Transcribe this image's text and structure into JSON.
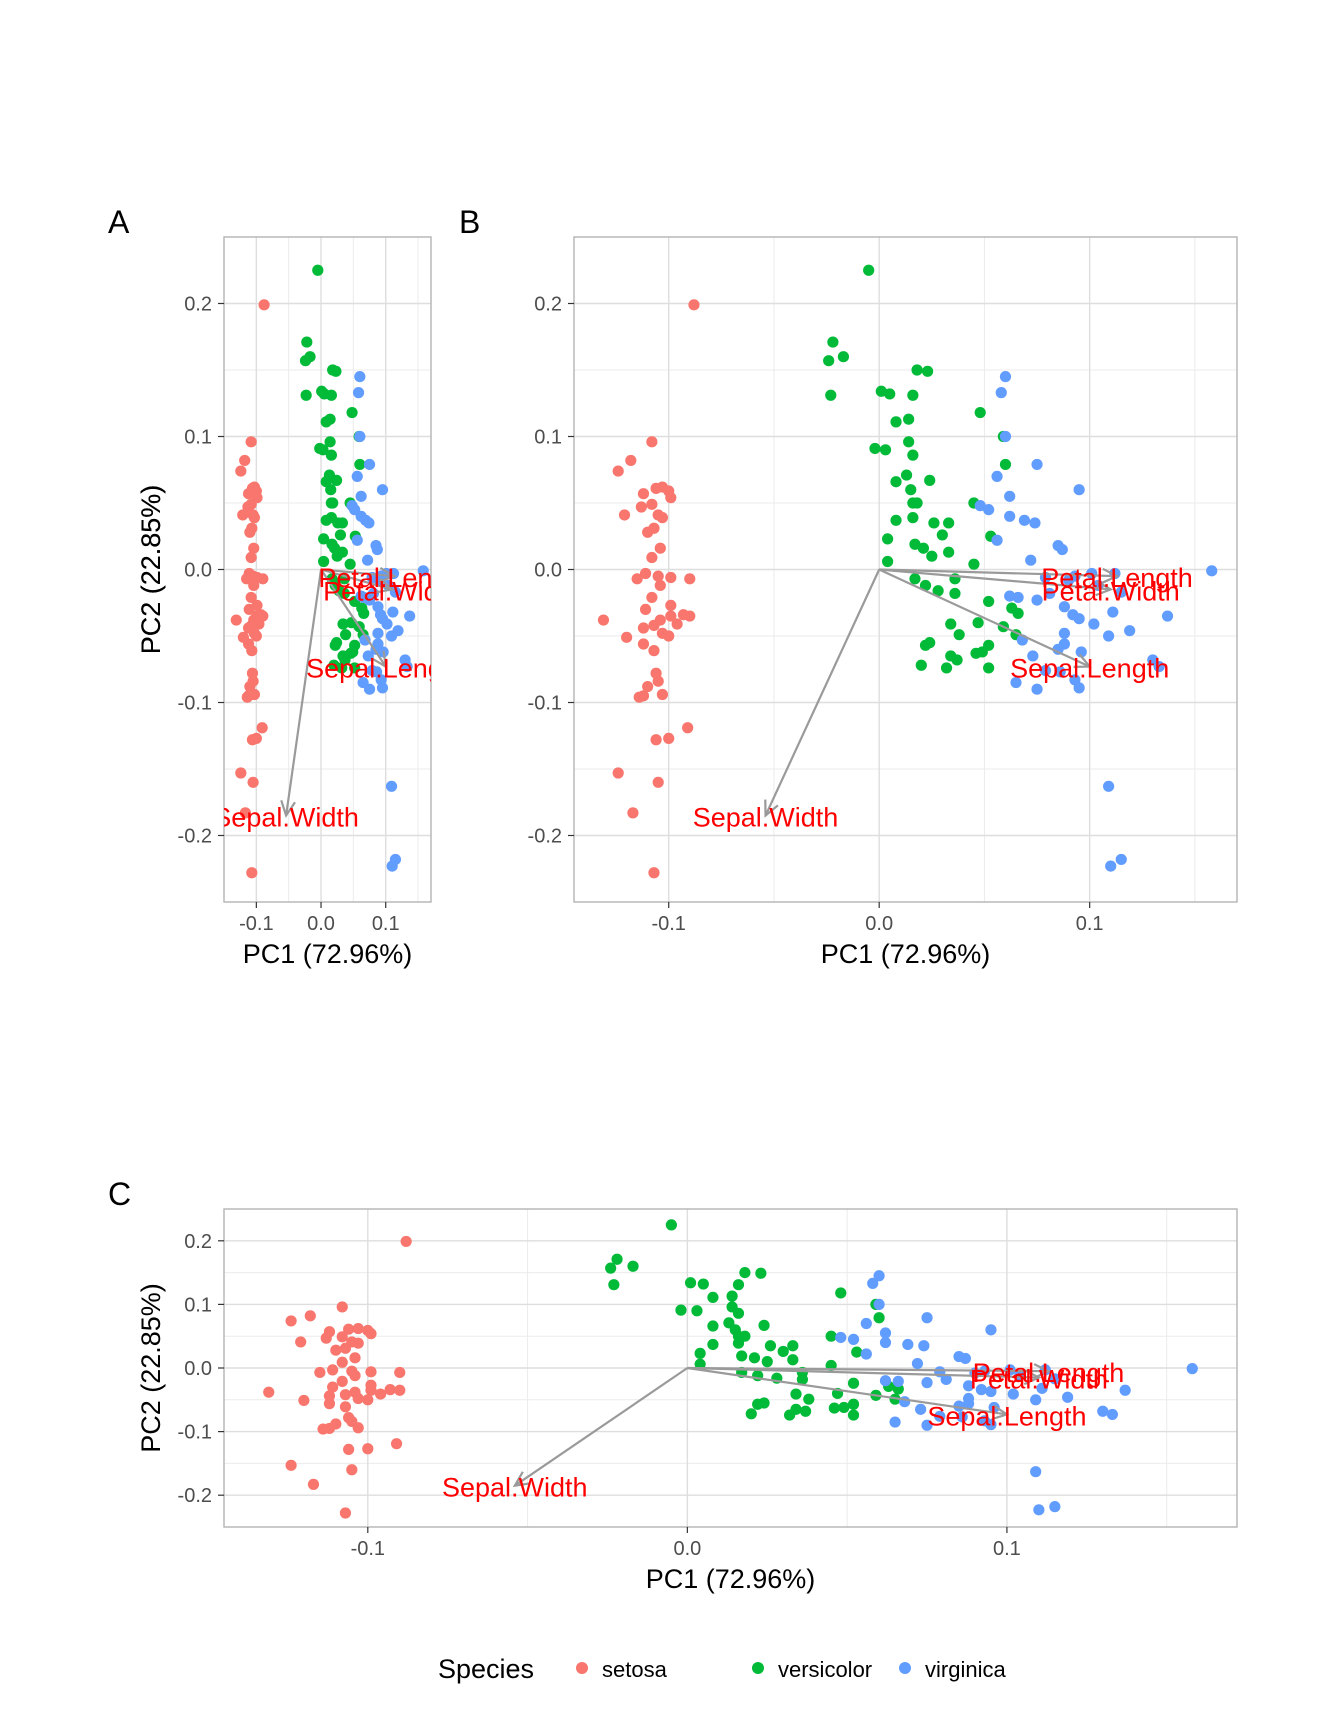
{
  "legend": {
    "title": "Species",
    "items": [
      {
        "label": "setosa",
        "color": "#F8766D"
      },
      {
        "label": "versicolor",
        "color": "#00BA38"
      },
      {
        "label": "virginica",
        "color": "#619CFF"
      }
    ]
  },
  "colors": {
    "setosa": "#F8766D",
    "versicolor": "#00BA38",
    "virginica": "#619CFF",
    "arrow": "#9A9A9A",
    "arrow_label": "#FF0000",
    "grid": "#EBEBEB",
    "frame": "#B3B3B3"
  },
  "chart_data": [
    {
      "type": "scatter",
      "panel_label": "A",
      "xlabel": "PC1 (72.96%)",
      "ylabel": "PC2 (22.85%)",
      "xlim": [
        -0.15,
        0.17
      ],
      "ylim": [
        -0.25,
        0.25
      ],
      "xticks": [
        "-0.1",
        "0.0",
        "0.1"
      ],
      "yticks": [
        "0.2",
        "0.1",
        "0.0",
        "-0.1",
        "-0.2"
      ],
      "xtick_values": [
        -0.1,
        0.0,
        0.1
      ],
      "ytick_values": [
        0.2,
        0.1,
        0.0,
        -0.1,
        -0.2
      ],
      "grid": true
    },
    {
      "type": "scatter",
      "panel_label": "B",
      "xlabel": "PC1 (72.96%)",
      "ylabel": "PC2 (22.85%)",
      "xlim": [
        -0.145,
        0.17
      ],
      "ylim": [
        -0.25,
        0.25
      ],
      "xticks": [
        "-0.1",
        "0.0",
        "0.1"
      ],
      "yticks": [
        "0.2",
        "0.1",
        "0.0",
        "-0.1",
        "-0.2"
      ],
      "xtick_values": [
        -0.1,
        0.0,
        0.1
      ],
      "ytick_values": [
        0.2,
        0.1,
        0.0,
        -0.1,
        -0.2
      ],
      "grid": true
    },
    {
      "type": "scatter",
      "panel_label": "C",
      "xlabel": "PC1 (72.96%)",
      "ylabel": "PC2 (22.85%)",
      "xlim": [
        -0.145,
        0.172
      ],
      "ylim": [
        -0.25,
        0.25
      ],
      "xticks": [
        "-0.1",
        "0.0",
        "0.1"
      ],
      "yticks": [
        "0.2",
        "0.1",
        "0.0",
        "-0.1",
        "-0.2"
      ],
      "xtick_values": [
        -0.1,
        0.0,
        0.1
      ],
      "ytick_values": [
        0.2,
        0.1,
        0.0,
        -0.1,
        -0.2
      ],
      "grid": true
    }
  ],
  "loadings": [
    {
      "name": "Sepal.Length",
      "x": 0.1,
      "y": -0.073
    },
    {
      "name": "Sepal.Width",
      "x": -0.054,
      "y": -0.185
    },
    {
      "name": "Petal.Length",
      "x": 0.113,
      "y": -0.005
    },
    {
      "name": "Petal.Width",
      "x": 0.11,
      "y": -0.015
    }
  ],
  "series": [
    {
      "name": "setosa",
      "points": [
        [
          -0.088,
          0.199
        ],
        [
          -0.108,
          0.096
        ],
        [
          -0.118,
          0.082
        ],
        [
          -0.124,
          0.074
        ],
        [
          -0.103,
          0.062
        ],
        [
          -0.106,
          0.061
        ],
        [
          -0.1,
          0.059
        ],
        [
          -0.112,
          0.057
        ],
        [
          -0.099,
          0.054
        ],
        [
          -0.108,
          0.049
        ],
        [
          -0.113,
          0.047
        ],
        [
          -0.121,
          0.041
        ],
        [
          -0.105,
          0.041
        ],
        [
          -0.103,
          0.039
        ],
        [
          -0.107,
          0.031
        ],
        [
          -0.11,
          0.028
        ],
        [
          -0.104,
          0.016
        ],
        [
          -0.108,
          0.009
        ],
        [
          -0.111,
          -0.003
        ],
        [
          -0.105,
          -0.005
        ],
        [
          -0.099,
          -0.006
        ],
        [
          -0.09,
          -0.007
        ],
        [
          -0.115,
          -0.007
        ],
        [
          -0.104,
          -0.012
        ],
        [
          -0.108,
          -0.021
        ],
        [
          -0.099,
          -0.027
        ],
        [
          -0.111,
          -0.03
        ],
        [
          -0.093,
          -0.034
        ],
        [
          -0.099,
          -0.035
        ],
        [
          -0.131,
          -0.038
        ],
        [
          -0.09,
          -0.035
        ],
        [
          -0.104,
          -0.038
        ],
        [
          -0.096,
          -0.041
        ],
        [
          -0.107,
          -0.042
        ],
        [
          -0.112,
          -0.044
        ],
        [
          -0.103,
          -0.048
        ],
        [
          -0.1,
          -0.05
        ],
        [
          -0.12,
          -0.051
        ],
        [
          -0.112,
          -0.056
        ],
        [
          -0.107,
          -0.061
        ],
        [
          -0.106,
          -0.078
        ],
        [
          -0.105,
          -0.084
        ],
        [
          -0.11,
          -0.088
        ],
        [
          -0.103,
          -0.094
        ],
        [
          -0.112,
          -0.095
        ],
        [
          -0.114,
          -0.096
        ],
        [
          -0.091,
          -0.119
        ],
        [
          -0.1,
          -0.127
        ],
        [
          -0.106,
          -0.128
        ],
        [
          -0.124,
          -0.153
        ],
        [
          -0.105,
          -0.16
        ],
        [
          -0.117,
          -0.183
        ],
        [
          -0.107,
          -0.228
        ]
      ]
    },
    {
      "name": "versicolor",
      "points": [
        [
          -0.005,
          0.225
        ],
        [
          -0.022,
          0.171
        ],
        [
          -0.017,
          0.16
        ],
        [
          -0.024,
          0.157
        ],
        [
          0.018,
          0.15
        ],
        [
          0.023,
          0.149
        ],
        [
          -0.023,
          0.131
        ],
        [
          0.001,
          0.134
        ],
        [
          0.005,
          0.132
        ],
        [
          0.016,
          0.131
        ],
        [
          0.048,
          0.118
        ],
        [
          0.014,
          0.113
        ],
        [
          0.008,
          0.111
        ],
        [
          0.059,
          0.1
        ],
        [
          0.014,
          0.096
        ],
        [
          -0.002,
          0.091
        ],
        [
          0.003,
          0.09
        ],
        [
          0.016,
          0.086
        ],
        [
          0.06,
          0.079
        ],
        [
          0.013,
          0.071
        ],
        [
          0.024,
          0.067
        ],
        [
          0.008,
          0.066
        ],
        [
          0.015,
          0.06
        ],
        [
          0.016,
          0.05
        ],
        [
          0.018,
          0.05
        ],
        [
          0.045,
          0.05
        ],
        [
          0.016,
          0.039
        ],
        [
          0.008,
          0.037
        ],
        [
          0.026,
          0.035
        ],
        [
          0.033,
          0.035
        ],
        [
          0.03,
          0.026
        ],
        [
          0.053,
          0.025
        ],
        [
          0.004,
          0.023
        ],
        [
          0.017,
          0.019
        ],
        [
          0.021,
          0.016
        ],
        [
          0.033,
          0.013
        ],
        [
          0.025,
          0.01
        ],
        [
          0.004,
          0.006
        ],
        [
          0.045,
          0.004
        ],
        [
          0.017,
          -0.007
        ],
        [
          0.036,
          -0.007
        ],
        [
          0.022,
          -0.012
        ],
        [
          0.036,
          -0.018
        ],
        [
          0.028,
          -0.016
        ],
        [
          0.052,
          -0.024
        ],
        [
          0.066,
          -0.033
        ],
        [
          0.047,
          -0.04
        ],
        [
          0.034,
          -0.041
        ],
        [
          0.024,
          -0.055
        ],
        [
          0.022,
          -0.057
        ],
        [
          0.038,
          -0.049
        ],
        [
          0.052,
          -0.057
        ],
        [
          0.049,
          -0.062
        ],
        [
          0.046,
          -0.063
        ],
        [
          0.034,
          -0.065
        ],
        [
          0.037,
          -0.068
        ],
        [
          0.052,
          -0.074
        ],
        [
          0.032,
          -0.074
        ],
        [
          0.02,
          -0.072
        ],
        [
          0.063,
          -0.029
        ],
        [
          0.059,
          -0.043
        ],
        [
          0.065,
          -0.049
        ]
      ]
    },
    {
      "name": "virginica",
      "points": [
        [
          0.06,
          0.145
        ],
        [
          0.058,
          0.133
        ],
        [
          0.06,
          0.1
        ],
        [
          0.075,
          0.079
        ],
        [
          0.056,
          0.07
        ],
        [
          0.095,
          0.06
        ],
        [
          0.048,
          0.048
        ],
        [
          0.062,
          0.055
        ],
        [
          0.052,
          0.045
        ],
        [
          0.062,
          0.04
        ],
        [
          0.069,
          0.037
        ],
        [
          0.074,
          0.035
        ],
        [
          0.056,
          0.022
        ],
        [
          0.085,
          0.018
        ],
        [
          0.087,
          0.015
        ],
        [
          0.072,
          0.007
        ],
        [
          0.158,
          -0.001
        ],
        [
          0.112,
          -0.003
        ],
        [
          0.101,
          -0.003
        ],
        [
          0.093,
          -0.005
        ],
        [
          0.079,
          -0.006
        ],
        [
          0.09,
          -0.008
        ],
        [
          0.104,
          -0.012
        ],
        [
          0.115,
          -0.017
        ],
        [
          0.081,
          -0.018
        ],
        [
          0.062,
          -0.02
        ],
        [
          0.075,
          -0.023
        ],
        [
          0.066,
          -0.021
        ],
        [
          0.088,
          -0.028
        ],
        [
          0.092,
          -0.034
        ],
        [
          0.111,
          -0.032
        ],
        [
          0.137,
          -0.035
        ],
        [
          0.095,
          -0.037
        ],
        [
          0.102,
          -0.041
        ],
        [
          0.119,
          -0.046
        ],
        [
          0.088,
          -0.048
        ],
        [
          0.109,
          -0.05
        ],
        [
          0.068,
          -0.053
        ],
        [
          0.088,
          -0.056
        ],
        [
          0.085,
          -0.06
        ],
        [
          0.096,
          -0.062
        ],
        [
          0.073,
          -0.065
        ],
        [
          0.13,
          -0.068
        ],
        [
          0.133,
          -0.073
        ],
        [
          0.079,
          -0.076
        ],
        [
          0.086,
          -0.077
        ],
        [
          0.093,
          -0.083
        ],
        [
          0.065,
          -0.085
        ],
        [
          0.095,
          -0.089
        ],
        [
          0.075,
          -0.09
        ],
        [
          0.109,
          -0.163
        ],
        [
          0.115,
          -0.218
        ],
        [
          0.11,
          -0.223
        ]
      ]
    }
  ]
}
